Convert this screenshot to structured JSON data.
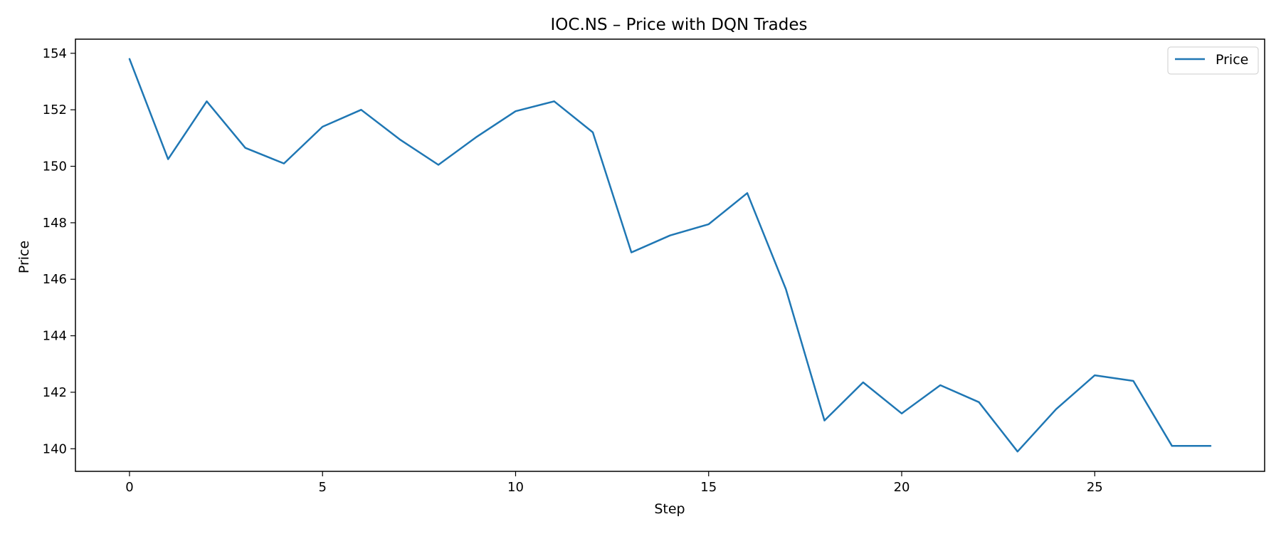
{
  "chart_data": {
    "type": "line",
    "title": "IOC.NS – Price with DQN Trades",
    "xlabel": "Step",
    "ylabel": "Price",
    "xlim": [
      -1.4,
      29.4
    ],
    "ylim": [
      139.2,
      154.5
    ],
    "xticks": [
      0,
      5,
      10,
      15,
      20,
      25
    ],
    "yticks": [
      140,
      142,
      144,
      146,
      148,
      150,
      152,
      154
    ],
    "grid": false,
    "legend": "top-right",
    "series": [
      {
        "name": "Price",
        "color": "#1f77b4",
        "x": [
          0,
          1,
          2,
          3,
          4,
          5,
          6,
          7,
          8,
          9,
          10,
          11,
          12,
          13,
          14,
          15,
          16,
          17,
          18,
          19,
          20,
          21,
          22,
          23,
          24,
          25,
          26,
          27,
          28
        ],
        "values": [
          153.8,
          150.25,
          152.3,
          150.65,
          150.1,
          151.4,
          152.0,
          150.95,
          150.05,
          151.05,
          151.95,
          152.3,
          151.2,
          146.95,
          147.55,
          147.95,
          149.05,
          145.65,
          141.0,
          142.35,
          141.25,
          142.25,
          141.65,
          139.9,
          141.4,
          142.6,
          142.4,
          140.1,
          140.1
        ]
      }
    ]
  }
}
